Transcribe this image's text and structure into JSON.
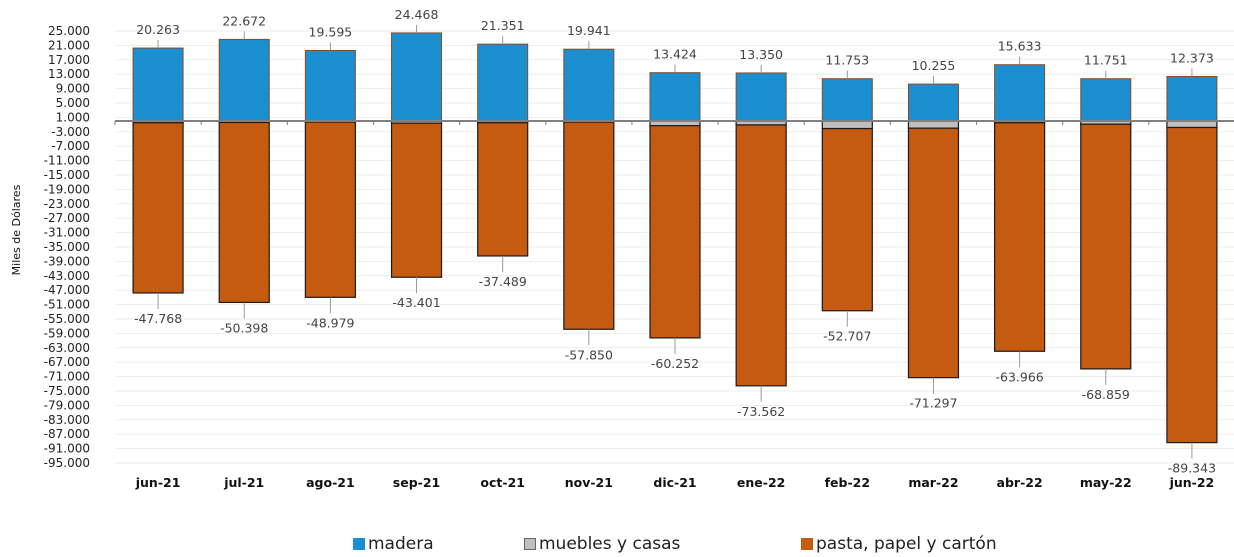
{
  "chart_data": {
    "type": "bar",
    "stacked": true,
    "ylabel": "Miles de Dólares",
    "ylim": [
      -95000,
      25000
    ],
    "yticks": [
      25000,
      21000,
      17000,
      13000,
      9000,
      5000,
      1000,
      -3000,
      -7000,
      -11000,
      -15000,
      -19000,
      -23000,
      -27000,
      -31000,
      -35000,
      -39000,
      -43000,
      -47000,
      -51000,
      -55000,
      -59000,
      -63000,
      -67000,
      -71000,
      -75000,
      -79000,
      -83000,
      -87000,
      -91000,
      -95000
    ],
    "ytick_labels": [
      "25.000",
      "21.000",
      "17.000",
      "13.000",
      "9.000",
      "5.000",
      "1.000",
      "-3.000",
      "-7.000",
      "-11.000",
      "-15.000",
      "-19.000",
      "-23.000",
      "-27.000",
      "-31.000",
      "-35.000",
      "-39.000",
      "-43.000",
      "-47.000",
      "-51.000",
      "-55.000",
      "-59.000",
      "-63.000",
      "-67.000",
      "-71.000",
      "-75.000",
      "-79.000",
      "-83.000",
      "-87.000",
      "-91.000",
      "-95.000"
    ],
    "categories": [
      "jun-21",
      "jul-21",
      "ago-21",
      "sep-21",
      "oct-21",
      "nov-21",
      "dic-21",
      "ene-22",
      "feb-22",
      "mar-22",
      "abr-22",
      "may-22",
      "jun-22"
    ],
    "series": [
      {
        "name": "madera",
        "color": "#1B8FD0",
        "values": [
          20263,
          22672,
          19595,
          24468,
          21351,
          19941,
          13424,
          13350,
          11753,
          10255,
          15633,
          11751,
          12373
        ]
      },
      {
        "name": "muebles y casas",
        "color": "#BFBFBF",
        "values": [
          -500,
          -400,
          -300,
          -600,
          -500,
          -300,
          -1300,
          -1100,
          -2100,
          -2000,
          -500,
          -900,
          -1800
        ]
      },
      {
        "name": "pasta, papel y cartón",
        "color": "#C55A11",
        "values": [
          -47268,
          -49998,
          -48679,
          -42801,
          -36989,
          -57550,
          -58952,
          -72462,
          -50607,
          -69297,
          -63466,
          -67959,
          -87543
        ]
      }
    ],
    "data_labels_top": [
      "20.263",
      "22.672",
      "19.595",
      "24.468",
      "21.351",
      "19.941",
      "13.424",
      "13.350",
      "11.753",
      "10.255",
      "15.633",
      "11.751",
      "12.373"
    ],
    "data_labels_bottom": [
      "-47.768",
      "-50.398",
      "-48.979",
      "-43.401",
      "-37.489",
      "-57.850",
      "-60.252",
      "-73.562",
      "-52.707",
      "-71.297",
      "-63.966",
      "-68.859",
      "-89.343"
    ],
    "legend": {
      "position": "bottom"
    }
  }
}
